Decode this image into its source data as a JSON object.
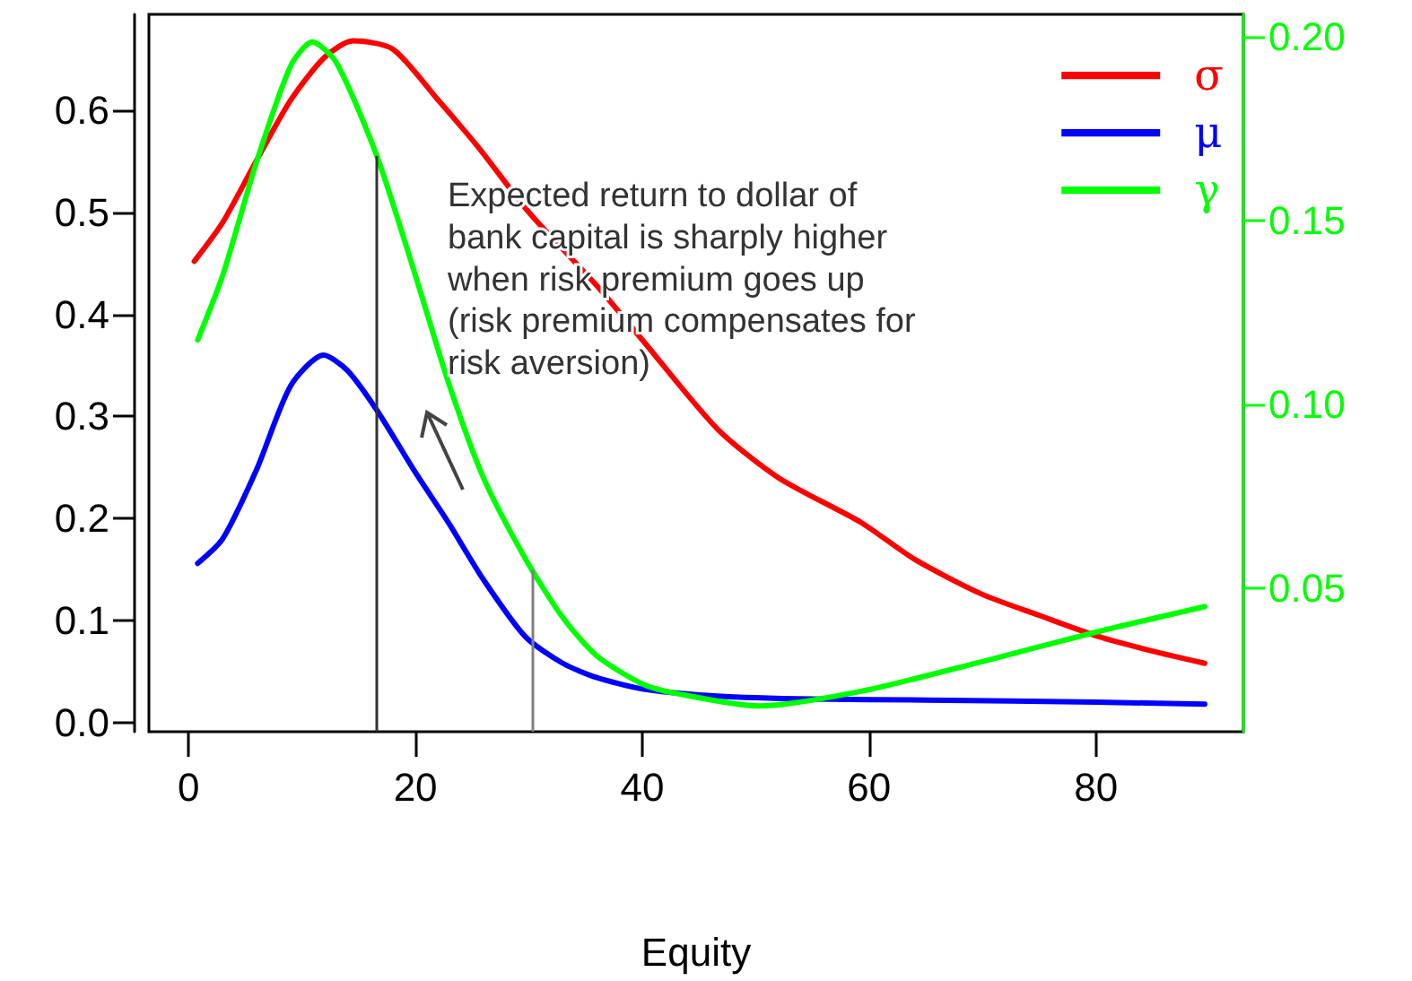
{
  "chart_data": {
    "type": "line",
    "xlabel": "Equity",
    "xlim": [
      -3.5,
      93
    ],
    "xticks": [
      0,
      20,
      40,
      60,
      80
    ],
    "ylim": [
      -0.009,
      0.694
    ],
    "yticks": [
      {
        "value": 0,
        "label": "0.0"
      },
      0.1,
      0.2,
      0.3,
      0.4,
      0.5,
      0.6
    ],
    "y2lim": [
      0.011,
      0.206
    ],
    "y2ticks": [
      0.05,
      {
        "value": 0.1,
        "label": "0.10"
      },
      0.15,
      {
        "value": 0.2,
        "label": "0.20"
      }
    ],
    "legend": "top right",
    "grid": false,
    "marker": "none",
    "line_style": "solid",
    "series": [
      {
        "name": "σ",
        "color": "#ff0000",
        "x": [
          0.5,
          3,
          6,
          9,
          12,
          14.5,
          18,
          22,
          25.6,
          30,
          36,
          40,
          46.6,
          52,
          59.3,
          64,
          69.9,
          75,
          80.3,
          85,
          89.6
        ],
        "values": [
          0.452,
          0.49,
          0.551,
          0.61,
          0.652,
          0.668,
          0.66,
          0.61,
          0.563,
          0.5,
          0.428,
          0.375,
          0.288,
          0.24,
          0.196,
          0.16,
          0.126,
          0.105,
          0.084,
          0.07,
          0.058
        ]
      },
      {
        "name": "μ",
        "color": "#0000ff",
        "x": [
          0.8,
          3,
          6,
          9,
          11.9,
          14,
          16.6,
          20,
          22.9,
          26,
          29.7,
          33,
          36,
          40,
          46.6,
          55,
          65,
          80,
          89.6
        ],
        "values": [
          0.156,
          0.18,
          0.248,
          0.33,
          0.36,
          0.345,
          0.306,
          0.245,
          0.196,
          0.14,
          0.084,
          0.058,
          0.044,
          0.033,
          0.026,
          0.023,
          0.022,
          0.02,
          0.018
        ]
      },
      {
        "name": "γ",
        "color": "#00ff00",
        "axis": "y2",
        "x": [
          0.8,
          3,
          6,
          9,
          10.9,
          13,
          16.6,
          20,
          22.9,
          26,
          29.7,
          33,
          36,
          40,
          43,
          50.3,
          59.3,
          69.9,
          80.3,
          89.6
        ],
        "values": [
          0.1175,
          0.135,
          0.166,
          0.192,
          0.1985,
          0.193,
          0.1675,
          0.135,
          0.106,
          0.08,
          0.058,
          0.042,
          0.0316,
          0.024,
          0.0214,
          0.018,
          0.022,
          0.03,
          0.0383,
          0.045
        ]
      }
    ],
    "ref_lines": [
      {
        "axis": "x",
        "value": 16.6,
        "color": "#333333",
        "line_style": "solid"
      },
      {
        "axis": "x",
        "value": 30.3,
        "color": "#808080",
        "line_style": "solid"
      }
    ],
    "annotations": [
      "Expected return to dollar of\nbank capital is sharply higher\nwhen risk premium goes up\n(risk premium compensates for\nrisk aversion)"
    ]
  }
}
